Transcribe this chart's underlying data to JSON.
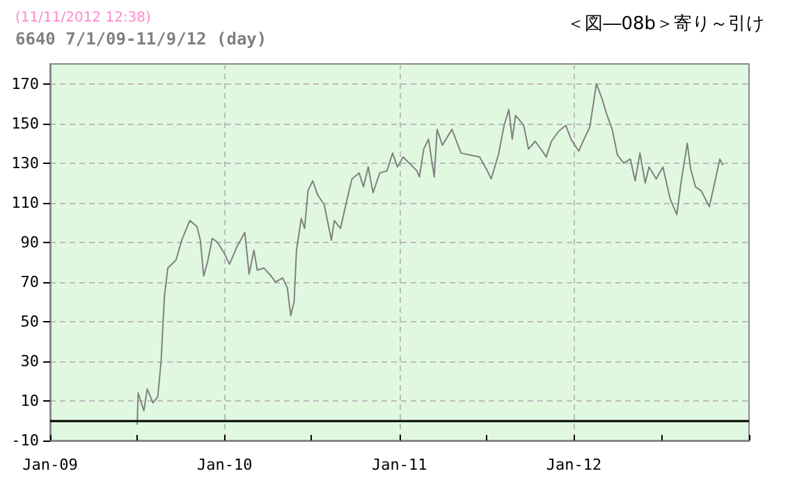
{
  "chart_data": {
    "type": "line",
    "title": "6640 7/1/09-11/9/12 (day)",
    "subtitle": "(11/11/2012 12:38)",
    "annotations": [
      "＜図―08b＞寄り～引け"
    ],
    "x": [
      "2009-07-02",
      "2009-07-04",
      "2009-07-16",
      "2009-07-23",
      "2009-08-04",
      "2009-08-14",
      "2009-08-21",
      "2009-08-28",
      "2009-09-04",
      "2009-09-21",
      "2009-10-03",
      "2009-10-20",
      "2009-11-04",
      "2009-11-11",
      "2009-11-18",
      "2009-11-26",
      "2009-12-06",
      "2009-12-17",
      "2010-01-01",
      "2010-01-11",
      "2010-01-27",
      "2010-02-12",
      "2010-02-21",
      "2010-03-03",
      "2010-03-10",
      "2010-03-24",
      "2010-04-08",
      "2010-04-17",
      "2010-05-02",
      "2010-05-12",
      "2010-05-19",
      "2010-05-26",
      "2010-05-31",
      "2010-06-10",
      "2010-06-17",
      "2010-06-24",
      "2010-07-04",
      "2010-07-14",
      "2010-07-28",
      "2010-08-12",
      "2010-08-18",
      "2010-08-31",
      "2010-09-14",
      "2010-09-24",
      "2010-10-09",
      "2010-10-18",
      "2010-10-28",
      "2010-11-07",
      "2010-11-21",
      "2010-12-06",
      "2010-12-18",
      "2010-12-28",
      "2011-01-09",
      "2011-02-07",
      "2011-02-12",
      "2011-02-21",
      "2011-03-03",
      "2011-03-15",
      "2011-03-21",
      "2011-04-01",
      "2011-04-21",
      "2011-05-10",
      "2011-05-30",
      "2011-06-18",
      "2011-07-02",
      "2011-07-12",
      "2011-07-27",
      "2011-08-08",
      "2011-08-18",
      "2011-08-25",
      "2011-09-01",
      "2011-09-18",
      "2011-09-28",
      "2011-10-12",
      "2011-10-27",
      "2011-11-04",
      "2011-11-15",
      "2011-11-30",
      "2011-12-15",
      "2011-12-26",
      "2012-01-11",
      "2012-01-22",
      "2012-02-03",
      "2012-02-17",
      "2012-02-28",
      "2012-03-09",
      "2012-03-21",
      "2012-04-01",
      "2012-04-14",
      "2012-04-28",
      "2012-05-08",
      "2012-05-18",
      "2012-05-29",
      "2012-06-06",
      "2012-06-21",
      "2012-07-05",
      "2012-07-20",
      "2012-08-03",
      "2012-08-13",
      "2012-08-25",
      "2012-09-01",
      "2012-09-11",
      "2012-09-23",
      "2012-10-10",
      "2012-10-23",
      "2012-11-01",
      "2012-11-07"
    ],
    "series": [
      {
        "color": "#808080",
        "values": [
          -2,
          14,
          5,
          16,
          9,
          12,
          30,
          63,
          77,
          81,
          91,
          101,
          98,
          91,
          73,
          80,
          92,
          90,
          84,
          79,
          88,
          95,
          74,
          86,
          76,
          77,
          73,
          70,
          72,
          67,
          53,
          60,
          86,
          102,
          97,
          116,
          121,
          114,
          109,
          91,
          101,
          97,
          112,
          122,
          125,
          118,
          128,
          115,
          125,
          126,
          135,
          128,
          133,
          126,
          123,
          137,
          142,
          123,
          147,
          139,
          147,
          135,
          134,
          133,
          127,
          122,
          134,
          149,
          157,
          142,
          154,
          149,
          137,
          141,
          136,
          133,
          141,
          146,
          149,
          142,
          136,
          142,
          148,
          170,
          163,
          155,
          147,
          134,
          130,
          132,
          121,
          135,
          120,
          128,
          122,
          128,
          112,
          104,
          122,
          140,
          127,
          118,
          116,
          108,
          122,
          132,
          129
        ]
      }
    ],
    "xlim": [
      "2009-01-01",
      "2013-01-01"
    ],
    "xticks": [
      {
        "value": "2009-01-01",
        "label": "Jan-09"
      },
      {
        "value": "2009-07-01",
        "label": null
      },
      {
        "value": "2010-01-01",
        "label": "Jan-10"
      },
      {
        "value": "2010-07-01",
        "label": null
      },
      {
        "value": "2011-01-01",
        "label": "Jan-11"
      },
      {
        "value": "2011-07-01",
        "label": null
      },
      {
        "value": "2012-01-01",
        "label": "Jan-12"
      },
      {
        "value": "2012-07-01",
        "label": null
      },
      {
        "value": "2013-01-01",
        "label": null
      }
    ],
    "ylim": [
      -10,
      180
    ],
    "yticks": [
      -10,
      10,
      30,
      50,
      70,
      90,
      110,
      130,
      150,
      170
    ],
    "ref_lines": [
      {
        "axis": "y",
        "value": 0,
        "color": "#000000"
      }
    ],
    "grid": true,
    "marker": "none",
    "line_style": "solid"
  }
}
